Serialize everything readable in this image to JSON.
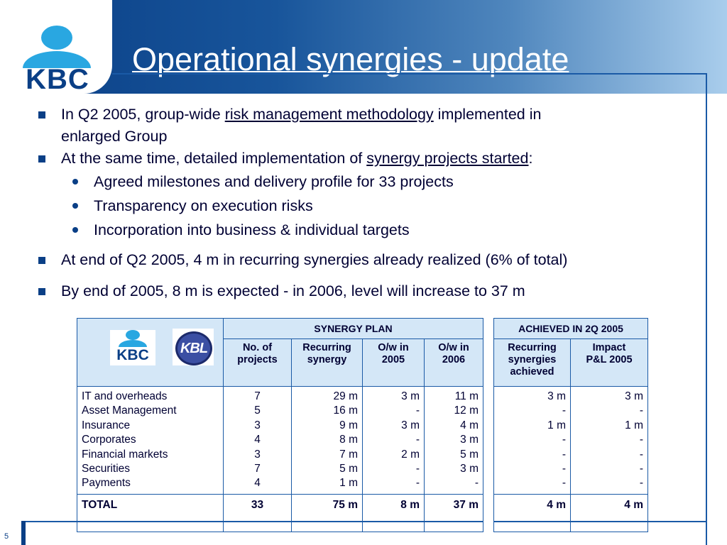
{
  "slide": {
    "title": "Operational synergies - update",
    "logo_text": "KBC",
    "page_number": "5"
  },
  "bullets": {
    "b1_pre": "In Q2 2005, group-wide ",
    "b1_link": "risk management methodology",
    "b1_post": " implemented in",
    "b1_line2": "enlarged Group",
    "b2_pre": "At the same time, detailed implementation of ",
    "b2_link": "synergy projects started",
    "b2_post": ":",
    "sub": [
      "Agreed milestones and delivery profile for 33 projects",
      "Transparency on execution risks",
      "Incorporation into business & individual targets"
    ],
    "b3": "At end of Q2 2005, 4 m in recurring synergies already realized (6% of total)",
    "b4": "By end of 2005, 8 m is expected - in 2006, level will increase to 37 m"
  },
  "table": {
    "logo_kbc": "KBC",
    "logo_kbl": "KBL",
    "group_plan": "SYNERGY PLAN",
    "group_achieved": "ACHIEVED IN 2Q 2005",
    "col_projects": [
      "No. of",
      "projects"
    ],
    "col_recurring": [
      "Recurring",
      "synergy"
    ],
    "col_ow2005": [
      "O/w in",
      "2005"
    ],
    "col_ow2006": [
      "O/w in",
      "2006"
    ],
    "col_achieved": [
      "Recurring",
      "synergies",
      "achieved"
    ],
    "col_impact": [
      "Impact",
      "P&L 2005"
    ],
    "rows": [
      {
        "name": "IT and overheads",
        "projects": "7",
        "recurring": "29 m",
        "ow2005": "3 m",
        "ow2006": "11 m",
        "achieved": "3 m",
        "impact": "3 m"
      },
      {
        "name": "Asset Management",
        "projects": "5",
        "recurring": "16 m",
        "ow2005": "-",
        "ow2006": "12 m",
        "achieved": "-",
        "impact": "-"
      },
      {
        "name": "Insurance",
        "projects": "3",
        "recurring": "9 m",
        "ow2005": "3 m",
        "ow2006": "4 m",
        "achieved": "1 m",
        "impact": "1 m"
      },
      {
        "name": "Corporates",
        "projects": "4",
        "recurring": "8 m",
        "ow2005": "-",
        "ow2006": "3 m",
        "achieved": "-",
        "impact": "-"
      },
      {
        "name": "Financial markets",
        "projects": "3",
        "recurring": "7 m",
        "ow2005": "2 m",
        "ow2006": "5 m",
        "achieved": "-",
        "impact": "-"
      },
      {
        "name": "Securities",
        "projects": "7",
        "recurring": "5 m",
        "ow2005": "-",
        "ow2006": "3 m",
        "achieved": "-",
        "impact": "-"
      },
      {
        "name": "Payments",
        "projects": "4",
        "recurring": "1 m",
        "ow2005": "-",
        "ow2006": "-",
        "achieved": "-",
        "impact": "-"
      }
    ],
    "total": {
      "name": "TOTAL",
      "projects": "33",
      "recurring": "75 m",
      "ow2005": "8 m",
      "ow2006": "37 m",
      "achieved": "4 m",
      "impact": "4 m"
    }
  },
  "colors": {
    "brand_dark": "#0a3f86",
    "brand_light": "#29a7e1",
    "header_fill": "#d4e7f7"
  }
}
